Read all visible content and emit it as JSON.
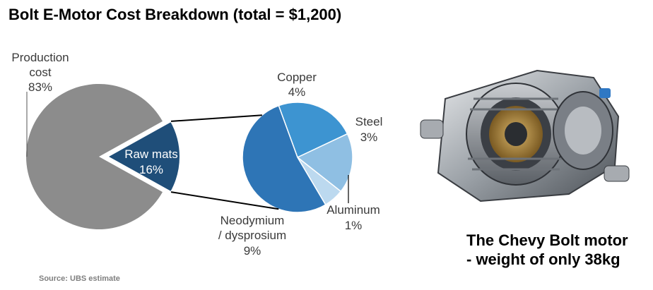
{
  "title": "Bolt E-Motor Cost Breakdown (total = $1,200)",
  "source": "Source: UBS estimate",
  "caption": {
    "line1": "The Chevy Bolt motor",
    "line2": "- weight of only 38kg"
  },
  "colors": {
    "production": "#8c8c8c",
    "raw_mats": "#1f4e79",
    "neodymium": "#2e75b6",
    "copper": "#3d94d1",
    "steel": "#8fbfe3",
    "aluminum": "#bcd9ef"
  },
  "chart_data": [
    {
      "type": "pie",
      "slices": [
        {
          "label": "Production cost",
          "value": 83
        },
        {
          "label": "Raw mats",
          "value": 16
        }
      ]
    },
    {
      "type": "pie",
      "slices": [
        {
          "label": "Neodymium / dysprosium",
          "value": 9
        },
        {
          "label": "Copper",
          "value": 4
        },
        {
          "label": "Steel",
          "value": 3
        },
        {
          "label": "Aluminum",
          "value": 1
        }
      ]
    }
  ],
  "labels": {
    "production": {
      "name1": "Production",
      "name2": "cost",
      "pct": "83%"
    },
    "raw_mats": {
      "name": "Raw mats",
      "pct": "16%"
    },
    "copper": {
      "name": "Copper",
      "pct": "4%"
    },
    "steel": {
      "name": "Steel",
      "pct": "3%"
    },
    "aluminum": {
      "name": "Aluminum",
      "pct": "1%"
    },
    "neodymium": {
      "name1": "Neodymium",
      "name2": "/ dysprosium",
      "pct": "9%"
    }
  }
}
